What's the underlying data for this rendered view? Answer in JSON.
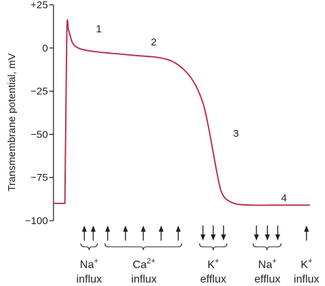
{
  "chart_data": {
    "type": "line",
    "ylabel": "Transmembrane potential, mV",
    "ylim": [
      -100,
      25
    ],
    "y_ticks": [
      "+25",
      "0",
      "−25",
      "−50",
      "−75",
      "−100"
    ],
    "y_tick_values": [
      25,
      0,
      -25,
      -50,
      -75,
      -100
    ],
    "series": [
      {
        "x": [
          0,
          0.5,
          0.6,
          0.7,
          0.8,
          1.0,
          1.3,
          1.8,
          2.5,
          3.5,
          4.5,
          5.5,
          6.3,
          7.0,
          7.5,
          7.9,
          8.2,
          8.4,
          8.6,
          8.8,
          9.0,
          9.3,
          9.7,
          10.5,
          11.5,
          13.5
        ],
        "y": [
          -90,
          -90,
          -90,
          8,
          10,
          3,
          0,
          -1.5,
          -2.5,
          -3.5,
          -4.5,
          -5.5,
          -8,
          -14,
          -22,
          -33,
          -48,
          -60,
          -72,
          -82,
          -86.5,
          -89,
          -90.5,
          -91,
          -91,
          -91
        ]
      }
    ],
    "annotations": [
      "1",
      "2",
      "3",
      "4"
    ]
  },
  "ion_labels": [
    {
      "name": "Na",
      "sup": "+",
      "line2": "influx"
    },
    {
      "name": "Ca",
      "sup": "2+",
      "line2": "influx"
    },
    {
      "name": "K",
      "sup": "+",
      "line2": "efflux"
    },
    {
      "name": "Na",
      "sup": "+",
      "line2": "efflux"
    },
    {
      "name": "K",
      "sup": "+",
      "line2": "influx"
    }
  ]
}
